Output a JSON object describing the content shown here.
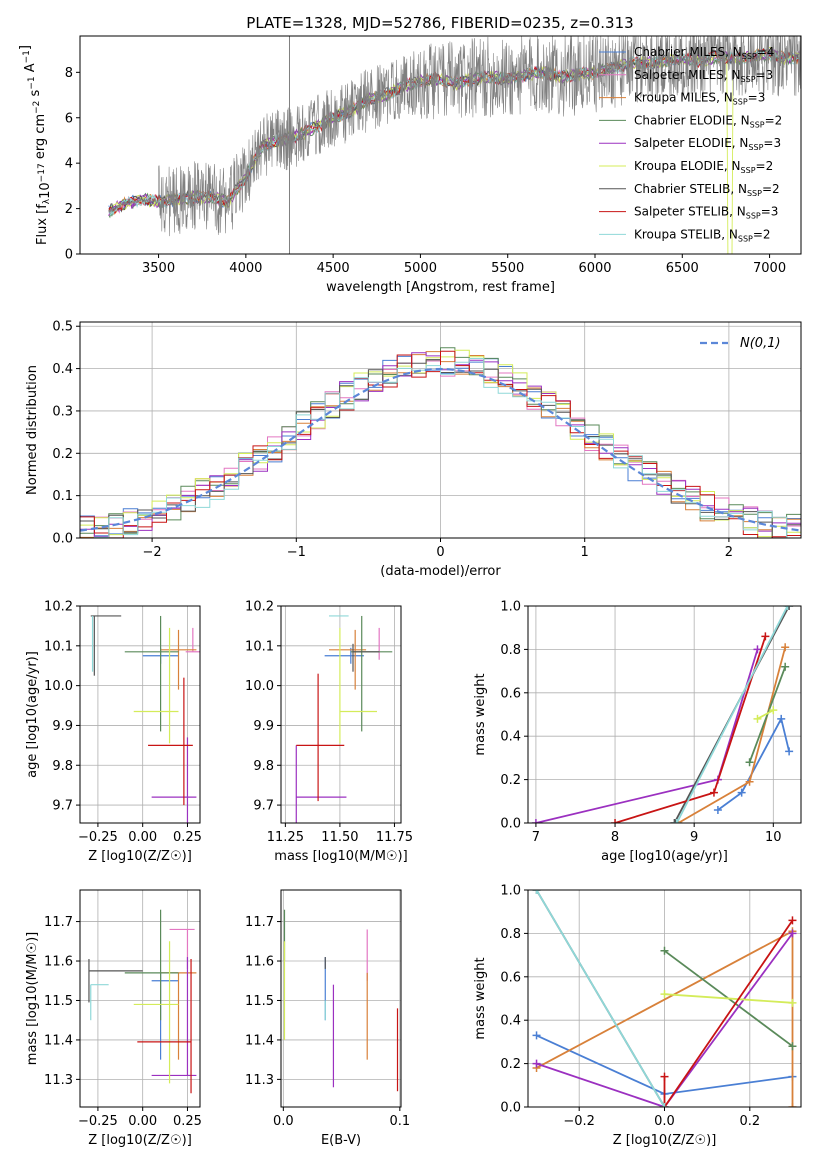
{
  "figure_title": "PLATE=1328, MJD=52786, FIBERID=0235, z=0.313",
  "models": [
    {
      "name": "Chabrier MILES",
      "nssp": "4",
      "color": "#4a7fd4"
    },
    {
      "name": "Salpeter MILES",
      "nssp": "3",
      "color": "#e377c2"
    },
    {
      "name": "Kroupa MILES",
      "nssp": "3",
      "color": "#d8813a"
    },
    {
      "name": "Chabrier ELODIE",
      "nssp": "2",
      "color": "#5a8a5a"
    },
    {
      "name": "Salpeter ELODIE",
      "nssp": "3",
      "color": "#9b30c0"
    },
    {
      "name": "Kroupa ELODIE",
      "nssp": "2",
      "color": "#d4ec5a"
    },
    {
      "name": "Chabrier STELIB",
      "nssp": "2",
      "color": "#555555"
    },
    {
      "name": "Salpeter STELIB",
      "nssp": "3",
      "color": "#c81414"
    },
    {
      "name": "Kroupa STELIB",
      "nssp": "2",
      "color": "#8fd8d8"
    }
  ],
  "legend_nssp_label": "N",
  "legend_nssp_sub": "SSP",
  "chart_data": [
    {
      "id": "spectrum",
      "type": "line",
      "xlabel": "wavelength [Angstrom, rest frame]",
      "ylabel": "Flux [f",
      "ylabel_full": "Flux [fλ10^-17 erg cm^-2 s^-1 A^-1]",
      "xlim": [
        3050,
        7180
      ],
      "ylim": [
        0,
        9.6
      ],
      "xticks": [
        3500,
        4000,
        4500,
        5000,
        5500,
        6000,
        6500,
        7000
      ],
      "yticks": [
        0,
        2,
        4,
        6,
        8
      ],
      "data_color": "#808080",
      "continuum_x": [
        3200,
        3300,
        3400,
        3500,
        3600,
        3700,
        3800,
        3900,
        4000,
        4100,
        4200,
        4300,
        4400,
        4500,
        4600,
        4700,
        4800,
        4900,
        5000,
        5100,
        5200,
        5300,
        5400,
        5500,
        5600,
        5700,
        5800,
        5900,
        6000,
        6100,
        6200,
        6300,
        6400,
        6500,
        6600,
        6700,
        6800,
        6900,
        7000,
        7100,
        7200
      ],
      "continuum_y": [
        1.8,
        2.2,
        2.4,
        2.3,
        2.4,
        2.5,
        2.5,
        2.3,
        3.4,
        4.8,
        5.0,
        5.2,
        5.6,
        6.0,
        6.3,
        6.8,
        7.0,
        7.4,
        7.6,
        7.7,
        7.5,
        7.7,
        7.8,
        7.7,
        7.9,
        8.0,
        7.8,
        7.9,
        8.0,
        8.2,
        8.4,
        8.4,
        8.5,
        8.6,
        8.5,
        8.7,
        8.6,
        8.7,
        8.8,
        8.6,
        8.7
      ]
    },
    {
      "id": "residual_hist",
      "type": "step",
      "xlabel": "(data-model)/error",
      "ylabel": "Normed distribution",
      "xlim": [
        -2.5,
        2.5
      ],
      "ylim": [
        0,
        0.51
      ],
      "xticks": [
        -2,
        -1,
        0,
        1,
        2
      ],
      "yticks": [
        0.0,
        0.1,
        0.2,
        0.3,
        0.4,
        0.5
      ],
      "bin_width": 0.1,
      "normal_label": "N(0,1)",
      "normal_color": "#5b87d8"
    },
    {
      "id": "age_vs_Z",
      "type": "errorbar",
      "xlabel": "Z [log10(Z/Z☉)]",
      "ylabel": "age  [log10(age/yr)]",
      "xlim": [
        -0.35,
        0.32
      ],
      "ylim": [
        9.655,
        10.2
      ],
      "xticks": [
        -0.25,
        0.0,
        0.25
      ],
      "yticks": [
        9.7,
        9.8,
        9.9,
        10.0,
        10.1,
        10.2
      ],
      "points": [
        {
          "x": 0.1,
          "y": 10.075,
          "ex": [
            0.1,
            0.1
          ],
          "ey": [
            0.02,
            0.02
          ],
          "model": 0
        },
        {
          "x": 0.28,
          "y": 10.085,
          "ex": [
            0.04,
            0.04
          ],
          "ey": [
            0.0,
            0.06
          ],
          "model": 1
        },
        {
          "x": 0.2,
          "y": 10.09,
          "ex": [
            0.1,
            0.1
          ],
          "ey": [
            0.1,
            0.05
          ],
          "model": 2
        },
        {
          "x": 0.1,
          "y": 10.085,
          "ex": [
            0.2,
            0.1
          ],
          "ey": [
            0.2,
            0.09
          ],
          "model": 3
        },
        {
          "x": 0.25,
          "y": 9.72,
          "ex": [
            0.2,
            0.05
          ],
          "ey": [
            0.1,
            0.15
          ],
          "model": 4
        },
        {
          "x": 0.15,
          "y": 9.935,
          "ex": [
            0.2,
            0.05
          ],
          "ey": [
            0.08,
            0.21
          ],
          "model": 5
        },
        {
          "x": -0.27,
          "y": 10.175,
          "ex": [
            0.02,
            0.15
          ],
          "ey": [
            0.15,
            0.0
          ],
          "model": 6
        },
        {
          "x": 0.23,
          "y": 9.85,
          "ex": [
            0.2,
            0.05
          ],
          "ey": [
            0.15,
            0.17
          ],
          "model": 7
        },
        {
          "x": -0.28,
          "y": 10.175,
          "ex": [
            0.0,
            0.0
          ],
          "ey": [
            0.14,
            0.0
          ],
          "model": 8
        }
      ]
    },
    {
      "id": "age_vs_mass",
      "type": "errorbar",
      "xlabel": "mass [log10(M/M☉)]",
      "ylabel": "",
      "xlim": [
        11.23,
        11.78
      ],
      "ylim": [
        9.655,
        10.2
      ],
      "xticks": [
        11.25,
        11.5,
        11.75
      ],
      "yticks": [
        9.7,
        9.8,
        9.9,
        10.0,
        10.1,
        10.2
      ],
      "points": [
        {
          "x": 11.55,
          "y": 10.075,
          "ex": [
            0.12,
            0.06
          ],
          "ey": [
            0.02,
            0.02
          ],
          "model": 0
        },
        {
          "x": 11.68,
          "y": 10.085,
          "ex": [
            0.0,
            0.0
          ],
          "ey": [
            0.02,
            0.06
          ],
          "model": 1
        },
        {
          "x": 11.57,
          "y": 10.09,
          "ex": [
            0.12,
            0.05
          ],
          "ey": [
            0.1,
            0.05
          ],
          "model": 2
        },
        {
          "x": 11.6,
          "y": 10.085,
          "ex": [
            0.05,
            0.14
          ],
          "ey": [
            0.2,
            0.09
          ],
          "model": 3
        },
        {
          "x": 11.3,
          "y": 9.72,
          "ex": [
            0.0,
            0.23
          ],
          "ey": [
            0.1,
            0.13
          ],
          "model": 4
        },
        {
          "x": 11.5,
          "y": 9.935,
          "ex": [
            0.0,
            0.17
          ],
          "ey": [
            0.08,
            0.21
          ],
          "model": 5
        },
        {
          "x": 11.56,
          "y": 10.085,
          "ex": [
            0.0,
            0.12
          ],
          "ey": [
            0.05,
            0.02
          ],
          "model": 6
        },
        {
          "x": 11.4,
          "y": 9.85,
          "ex": [
            0.1,
            0.12
          ],
          "ey": [
            0.14,
            0.18
          ],
          "model": 7
        },
        {
          "x": 11.54,
          "y": 10.175,
          "ex": [
            0.09,
            0.0
          ],
          "ey": [
            0.0,
            0.0
          ],
          "model": 8
        }
      ]
    },
    {
      "id": "weight_vs_age",
      "type": "line",
      "xlabel": "age  [log10(age/yr)]",
      "ylabel": "mass weight",
      "xlim": [
        6.9,
        10.35
      ],
      "ylim": [
        0,
        1.0
      ],
      "xticks": [
        7,
        8,
        9,
        10
      ],
      "yticks": [
        0.0,
        0.2,
        0.4,
        0.6,
        0.8,
        1.0
      ],
      "series": [
        {
          "model": 0,
          "x": [
            9.3,
            9.6,
            10.1,
            10.2
          ],
          "y": [
            0.06,
            0.14,
            0.48,
            0.33
          ]
        },
        {
          "model": 2,
          "x": [
            8.8,
            9.7,
            10.15
          ],
          "y": [
            0.0,
            0.19,
            0.81
          ]
        },
        {
          "model": 3,
          "x": [
            9.7,
            10.15
          ],
          "y": [
            0.28,
            0.72
          ]
        },
        {
          "model": 4,
          "x": [
            7.0,
            9.3,
            9.8
          ],
          "y": [
            0.0,
            0.2,
            0.8
          ]
        },
        {
          "model": 5,
          "x": [
            9.8,
            10.0
          ],
          "y": [
            0.48,
            0.52
          ]
        },
        {
          "model": 6,
          "x": [
            8.75,
            10.2
          ],
          "y": [
            0.0,
            1.0
          ]
        },
        {
          "model": 7,
          "x": [
            8.0,
            9.25,
            9.9
          ],
          "y": [
            0.0,
            0.14,
            0.86
          ]
        },
        {
          "model": 8,
          "x": [
            8.78,
            10.18
          ],
          "y": [
            0.0,
            1.0
          ]
        }
      ]
    },
    {
      "id": "mass_vs_Z",
      "type": "errorbar",
      "xlabel": "Z [log10(Z/Z☉)]",
      "ylabel": "mass [log10(M/M☉)]",
      "xlim": [
        -0.35,
        0.32
      ],
      "ylim": [
        11.23,
        11.78
      ],
      "xticks": [
        -0.25,
        0.0,
        0.25
      ],
      "yticks": [
        11.3,
        11.4,
        11.5,
        11.6,
        11.7
      ],
      "points": [
        {
          "x": 0.1,
          "y": 11.55,
          "ex": [
            0.05,
            0.1
          ],
          "ey": [
            0.2,
            0.02
          ],
          "model": 0
        },
        {
          "x": 0.25,
          "y": 11.68,
          "ex": [
            0.1,
            0.04
          ],
          "ey": [
            0.1,
            0.0
          ],
          "model": 1
        },
        {
          "x": 0.2,
          "y": 11.57,
          "ex": [
            0.1,
            0.1
          ],
          "ey": [
            0.22,
            0.0
          ],
          "model": 2
        },
        {
          "x": 0.1,
          "y": 11.57,
          "ex": [
            0.2,
            0.1
          ],
          "ey": [
            0.12,
            0.16
          ],
          "model": 3
        },
        {
          "x": 0.25,
          "y": 11.31,
          "ex": [
            0.2,
            0.05
          ],
          "ey": [
            0.0,
            0.3
          ],
          "model": 4
        },
        {
          "x": 0.15,
          "y": 11.49,
          "ex": [
            0.2,
            0.05
          ],
          "ey": [
            0.2,
            0.16
          ],
          "model": 5
        },
        {
          "x": -0.3,
          "y": 11.575,
          "ex": [
            0.0,
            0.3
          ],
          "ey": [
            0.08,
            0.03
          ],
          "model": 6
        },
        {
          "x": 0.27,
          "y": 11.395,
          "ex": [
            0.3,
            0.0
          ],
          "ey": [
            0.13,
            0.21
          ],
          "model": 7
        },
        {
          "x": -0.29,
          "y": 11.54,
          "ex": [
            0.0,
            0.1
          ],
          "ey": [
            0.09,
            0.0
          ],
          "model": 8
        }
      ]
    },
    {
      "id": "mass_vs_ebv",
      "type": "errorbar",
      "xlabel": "E(B-V)",
      "ylabel": "",
      "xlim": [
        -0.002,
        0.101
      ],
      "ylim": [
        11.23,
        11.78
      ],
      "xticks": [
        0.0,
        0.1
      ],
      "yticks": [
        11.3,
        11.4,
        11.5,
        11.6,
        11.7
      ],
      "points": [
        {
          "x": 0.036,
          "y": 11.55,
          "ex": [
            0,
            0
          ],
          "ey": [
            0.1,
            0.06
          ],
          "model": 0
        },
        {
          "x": 0.072,
          "y": 11.55,
          "ex": [
            0,
            0
          ],
          "ey": [
            0.0,
            0.13
          ],
          "model": 1
        },
        {
          "x": 0.072,
          "y": 11.55,
          "ex": [
            0,
            0
          ],
          "ey": [
            0.2,
            0.02
          ],
          "model": 2
        },
        {
          "x": 0.001,
          "y": 11.6,
          "ex": [
            0,
            0
          ],
          "ey": [
            0.0,
            0.13
          ],
          "model": 3
        },
        {
          "x": 0.043,
          "y": 11.4,
          "ex": [
            0,
            0
          ],
          "ey": [
            0.12,
            0.14
          ],
          "model": 4
        },
        {
          "x": 0.001,
          "y": 11.5,
          "ex": [
            0,
            0
          ],
          "ey": [
            0.1,
            0.15
          ],
          "model": 5
        },
        {
          "x": 0.036,
          "y": 11.58,
          "ex": [
            0,
            0
          ],
          "ey": [
            0.0,
            0.03
          ],
          "model": 6
        },
        {
          "x": 0.098,
          "y": 11.38,
          "ex": [
            0,
            0
          ],
          "ey": [
            0.11,
            0.1
          ],
          "model": 7
        },
        {
          "x": 0.036,
          "y": 11.5,
          "ex": [
            0,
            0
          ],
          "ey": [
            0.05,
            0.0
          ],
          "model": 8
        }
      ]
    },
    {
      "id": "weight_vs_Z",
      "type": "line",
      "xlabel": "Z [log10(Z/Z☉)]",
      "ylabel": "mass weight",
      "xlim": [
        -0.32,
        0.32
      ],
      "ylim": [
        0,
        1.0
      ],
      "xticks": [
        -0.2,
        0.0,
        0.2
      ],
      "yticks": [
        0.0,
        0.2,
        0.4,
        0.6,
        0.8,
        1.0
      ],
      "series": [
        {
          "model": 0,
          "x": [
            -0.3,
            0.0,
            0.3
          ],
          "y": [
            0.33,
            0.06,
            0.14
          ]
        },
        {
          "model": 2,
          "x": [
            -0.3,
            0.3,
            0.3
          ],
          "y": [
            0.18,
            0.81,
            0.0
          ]
        },
        {
          "model": 3,
          "x": [
            0.0,
            0.3
          ],
          "y": [
            0.72,
            0.28
          ]
        },
        {
          "model": 4,
          "x": [
            -0.3,
            0.0,
            0.3
          ],
          "y": [
            0.2,
            0.0,
            0.8
          ]
        },
        {
          "model": 5,
          "x": [
            0.0,
            0.3
          ],
          "y": [
            0.52,
            0.48
          ]
        },
        {
          "model": 6,
          "x": [
            -0.3,
            0.0
          ],
          "y": [
            1.0,
            0.0
          ]
        },
        {
          "model": 7,
          "x": [
            0.0,
            0.0,
            0.3
          ],
          "y": [
            0.14,
            0.0,
            0.86
          ]
        },
        {
          "model": 8,
          "x": [
            -0.3,
            0.0
          ],
          "y": [
            1.0,
            0.0
          ]
        }
      ]
    }
  ]
}
